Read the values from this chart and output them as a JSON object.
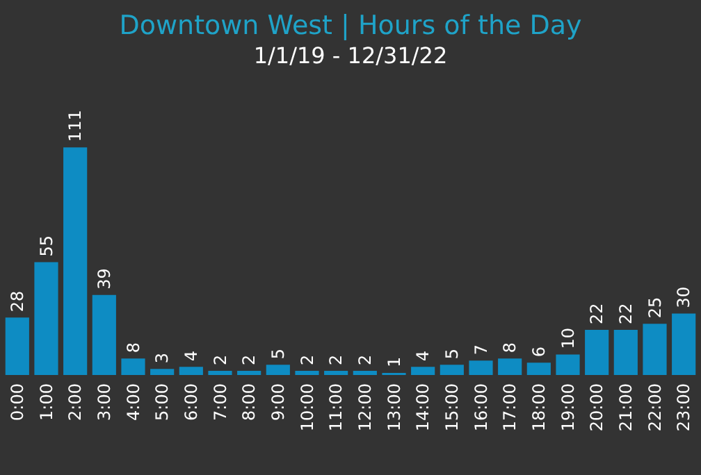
{
  "chart_data": {
    "type": "bar",
    "title": "Downtown West | Hours of the Day",
    "subtitle": "1/1/19 - 12/31/22",
    "categories": [
      "0:00",
      "1:00",
      "2:00",
      "3:00",
      "4:00",
      "5:00",
      "6:00",
      "7:00",
      "8:00",
      "9:00",
      "10:00",
      "11:00",
      "12:00",
      "13:00",
      "14:00",
      "15:00",
      "16:00",
      "17:00",
      "18:00",
      "19:00",
      "20:00",
      "21:00",
      "22:00",
      "23:00"
    ],
    "values": [
      28,
      55,
      111,
      39,
      8,
      3,
      4,
      2,
      2,
      5,
      2,
      2,
      2,
      1,
      4,
      5,
      7,
      8,
      6,
      10,
      22,
      22,
      25,
      30
    ],
    "color": "#0e8cc3",
    "data_labels": true,
    "tick_labels": "x"
  }
}
